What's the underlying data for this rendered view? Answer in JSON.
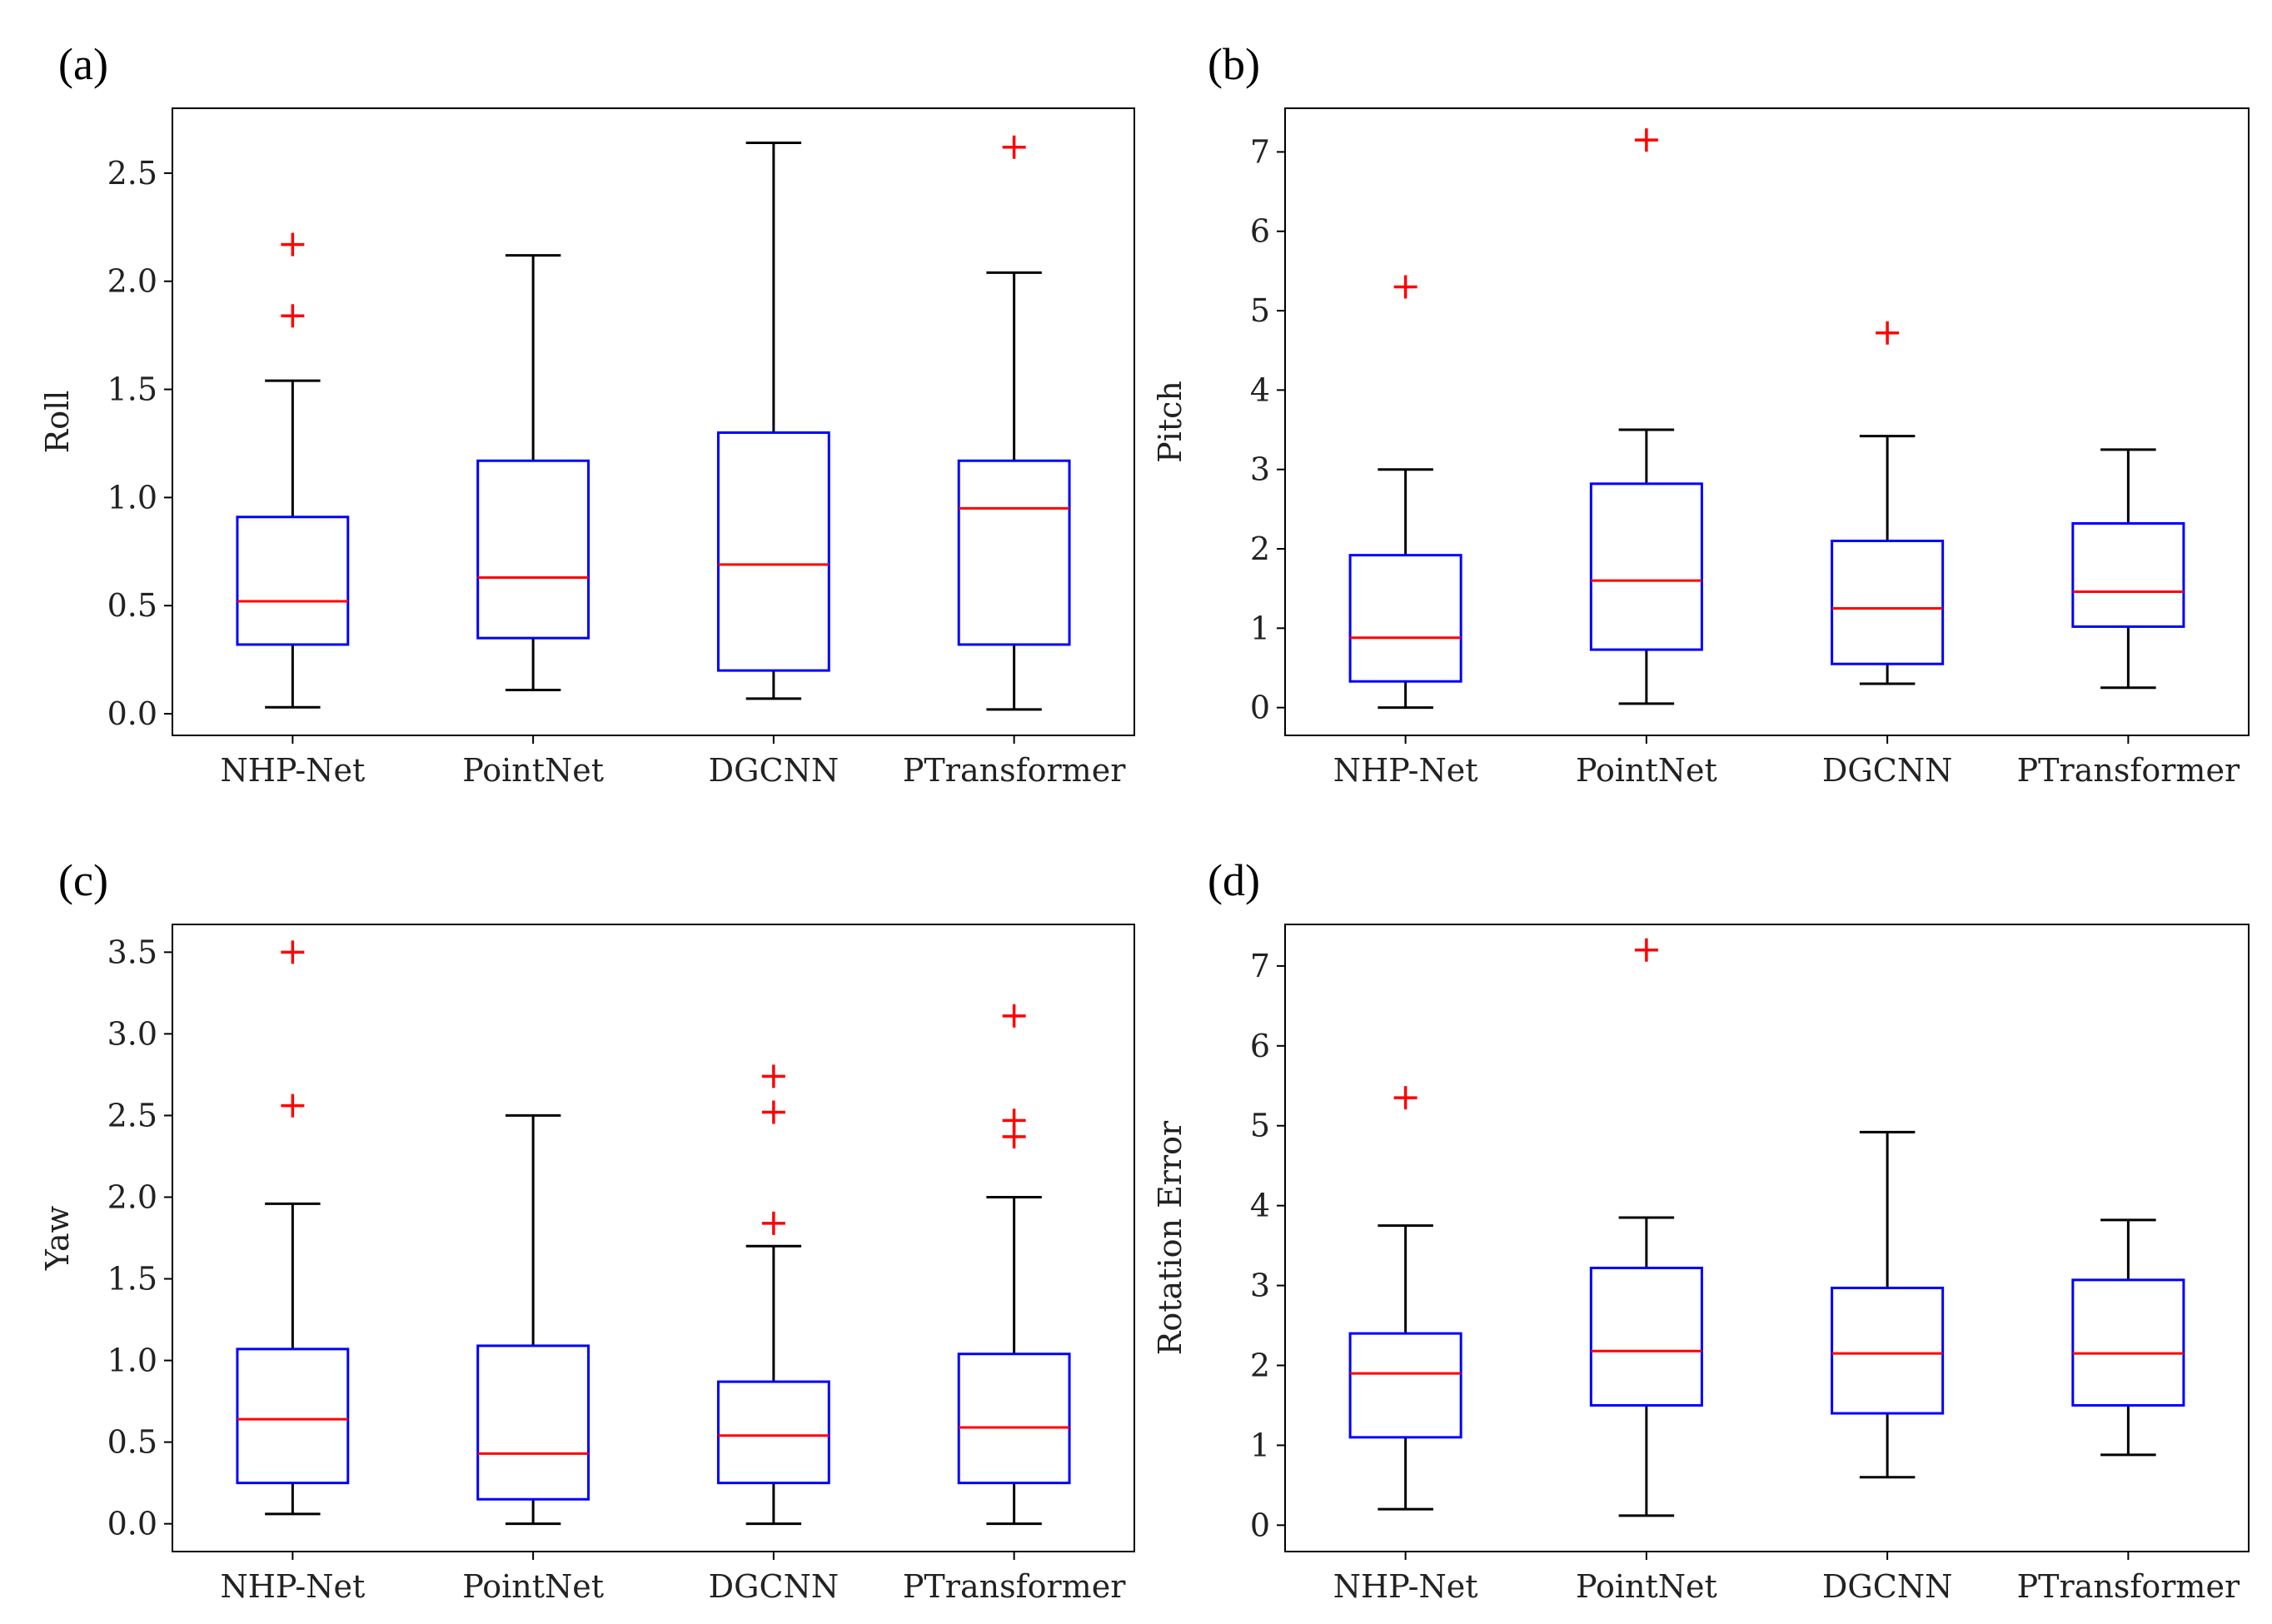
{
  "chart_data": [
    {
      "type": "boxplot",
      "panel_label": "(a)",
      "ylabel": "Roll",
      "xlabel": "",
      "categories": [
        "NHP-Net",
        "PointNet",
        "DGCNN",
        "PTransformer"
      ],
      "ylim": [
        -0.1,
        2.8
      ],
      "yticks": [
        0.0,
        0.5,
        1.0,
        1.5,
        2.0,
        2.5
      ],
      "ytick_labels": [
        "0.0",
        "0.5",
        "1.0",
        "1.5",
        "2.0",
        "2.5"
      ],
      "boxes": [
        {
          "whislo": 0.03,
          "q1": 0.32,
          "med": 0.52,
          "q3": 0.91,
          "whishi": 1.54,
          "fliers": [
            1.84,
            2.17
          ]
        },
        {
          "whislo": 0.11,
          "q1": 0.35,
          "med": 0.63,
          "q3": 1.17,
          "whishi": 2.12,
          "fliers": []
        },
        {
          "whislo": 0.07,
          "q1": 0.2,
          "med": 0.69,
          "q3": 1.3,
          "whishi": 2.64,
          "fliers": []
        },
        {
          "whislo": 0.02,
          "q1": 0.32,
          "med": 0.95,
          "q3": 1.17,
          "whishi": 2.04,
          "fliers": [
            2.62
          ]
        }
      ]
    },
    {
      "type": "boxplot",
      "panel_label": "(b)",
      "ylabel": "Pitch",
      "xlabel": "",
      "categories": [
        "NHP-Net",
        "PointNet",
        "DGCNN",
        "PTransformer"
      ],
      "ylim": [
        -0.35,
        7.55
      ],
      "yticks": [
        0,
        1,
        2,
        3,
        4,
        5,
        6,
        7
      ],
      "ytick_labels": [
        "0",
        "1",
        "2",
        "3",
        "4",
        "5",
        "6",
        "7"
      ],
      "boxes": [
        {
          "whislo": 0.0,
          "q1": 0.33,
          "med": 0.88,
          "q3": 1.92,
          "whishi": 3.0,
          "fliers": [
            5.3
          ]
        },
        {
          "whislo": 0.05,
          "q1": 0.73,
          "med": 1.6,
          "q3": 2.82,
          "whishi": 3.5,
          "fliers": [
            7.15
          ]
        },
        {
          "whislo": 0.3,
          "q1": 0.55,
          "med": 1.25,
          "q3": 2.1,
          "whishi": 3.42,
          "fliers": [
            4.72
          ]
        },
        {
          "whislo": 0.25,
          "q1": 1.02,
          "med": 1.46,
          "q3": 2.32,
          "whishi": 3.25,
          "fliers": []
        }
      ]
    },
    {
      "type": "boxplot",
      "panel_label": "(c)",
      "ylabel": "Yaw",
      "xlabel": "",
      "categories": [
        "NHP-Net",
        "PointNet",
        "DGCNN",
        "PTransformer"
      ],
      "ylim": [
        -0.17,
        3.67
      ],
      "yticks": [
        0.0,
        0.5,
        1.0,
        1.5,
        2.0,
        2.5,
        3.0,
        3.5
      ],
      "ytick_labels": [
        "0.0",
        "0.5",
        "1.0",
        "1.5",
        "2.0",
        "2.5",
        "3.0",
        "3.5"
      ],
      "boxes": [
        {
          "whislo": 0.06,
          "q1": 0.25,
          "med": 0.64,
          "q3": 1.07,
          "whishi": 1.96,
          "fliers": [
            2.56,
            3.5
          ]
        },
        {
          "whislo": 0.0,
          "q1": 0.15,
          "med": 0.43,
          "q3": 1.09,
          "whishi": 2.5,
          "fliers": []
        },
        {
          "whislo": 0.0,
          "q1": 0.25,
          "med": 0.54,
          "q3": 0.87,
          "whishi": 1.7,
          "fliers": [
            1.84,
            2.52,
            2.74
          ]
        },
        {
          "whislo": 0.0,
          "q1": 0.25,
          "med": 0.59,
          "q3": 1.04,
          "whishi": 2.0,
          "fliers": [
            2.37,
            2.47,
            3.11
          ]
        }
      ]
    },
    {
      "type": "boxplot",
      "panel_label": "(d)",
      "ylabel": "Rotation Error",
      "xlabel": "",
      "categories": [
        "NHP-Net",
        "PointNet",
        "DGCNN",
        "PTransformer"
      ],
      "ylim": [
        -0.33,
        7.52
      ],
      "yticks": [
        0,
        1,
        2,
        3,
        4,
        5,
        6,
        7
      ],
      "ytick_labels": [
        "0",
        "1",
        "2",
        "3",
        "4",
        "5",
        "6",
        "7"
      ],
      "boxes": [
        {
          "whislo": 0.2,
          "q1": 1.1,
          "med": 1.9,
          "q3": 2.4,
          "whishi": 3.75,
          "fliers": [
            5.35
          ]
        },
        {
          "whislo": 0.12,
          "q1": 1.5,
          "med": 2.18,
          "q3": 3.22,
          "whishi": 3.85,
          "fliers": [
            7.2
          ]
        },
        {
          "whislo": 0.6,
          "q1": 1.4,
          "med": 2.15,
          "q3": 2.97,
          "whishi": 4.92,
          "fliers": []
        },
        {
          "whislo": 0.88,
          "q1": 1.5,
          "med": 2.15,
          "q3": 3.07,
          "whishi": 3.82,
          "fliers": []
        }
      ]
    }
  ]
}
